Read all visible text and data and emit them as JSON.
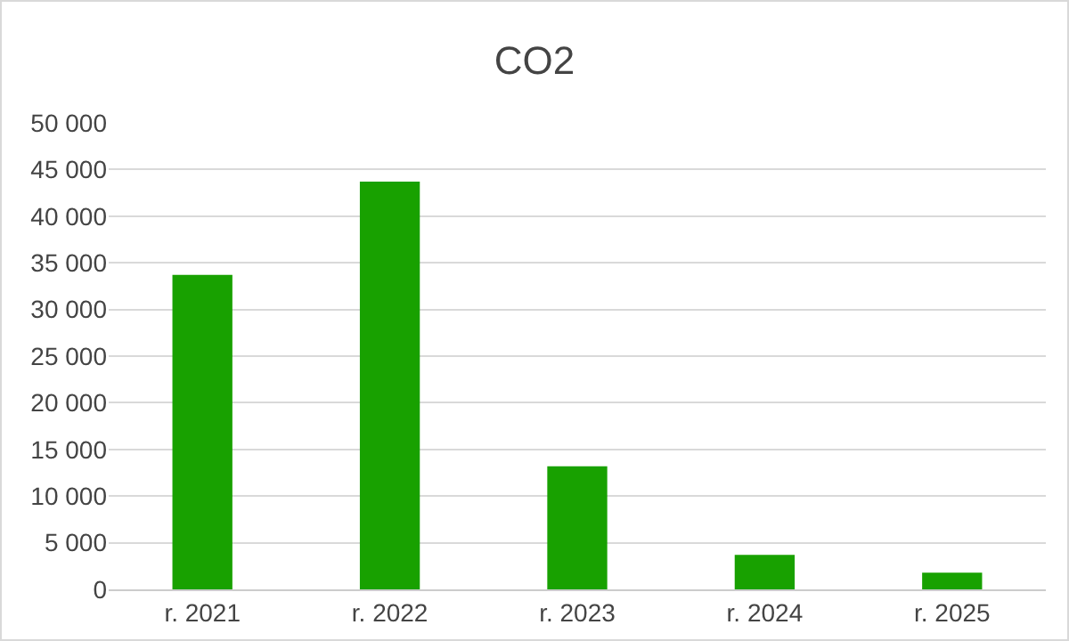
{
  "chart_data": {
    "type": "bar",
    "title": "CO2",
    "categories": [
      "r. 2021",
      "r. 2022",
      "r. 2023",
      "r. 2024",
      "r. 2025"
    ],
    "values": [
      33700,
      43700,
      13200,
      3700,
      1800
    ],
    "color": "#18a100",
    "ylim": [
      0,
      50000
    ],
    "yticks": [
      {
        "value": 0,
        "label": "0"
      },
      {
        "value": 5000,
        "label": "5 000"
      },
      {
        "value": 10000,
        "label": "10 000"
      },
      {
        "value": 15000,
        "label": "15 000"
      },
      {
        "value": 20000,
        "label": "20 000"
      },
      {
        "value": 25000,
        "label": "25 000"
      },
      {
        "value": 30000,
        "label": "30 000"
      },
      {
        "value": 35000,
        "label": "35 000"
      },
      {
        "value": 40000,
        "label": "40 000"
      },
      {
        "value": 45000,
        "label": "45 000"
      },
      {
        "value": 50000,
        "label": "50 000"
      }
    ],
    "grid": "y",
    "legend": false
  }
}
